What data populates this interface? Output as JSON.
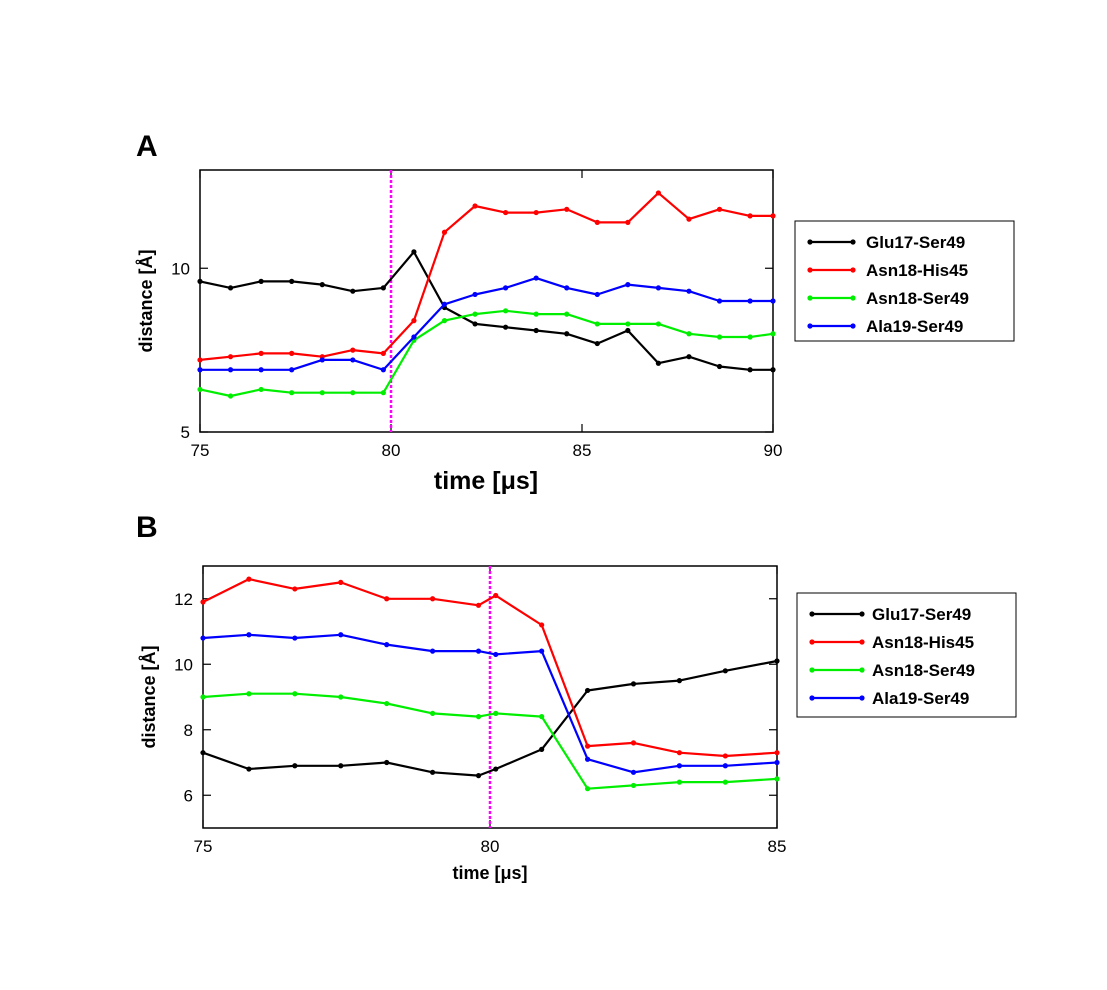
{
  "chart_data": [
    {
      "type": "line",
      "panel_label": "A",
      "xlabel": "time [μs]",
      "ylabel": "distance [Å]",
      "xlim": [
        75,
        90
      ],
      "ylim": [
        5,
        13
      ],
      "x_ticks": [
        75,
        80,
        85,
        90
      ],
      "y_ticks": [
        5,
        10
      ],
      "marker_line": {
        "x": 80,
        "color": "#ff00ff"
      },
      "legend_position": "right",
      "x": [
        75,
        75.8,
        76.6,
        77.4,
        78.2,
        79.0,
        79.8,
        80.6,
        81.4,
        82.2,
        83.0,
        83.8,
        84.6,
        85.4,
        86.2,
        87.0,
        87.8,
        88.6,
        89.4,
        90
      ],
      "series": [
        {
          "name": "Glu17-Ser49",
          "color": "#000000",
          "values": [
            9.6,
            9.4,
            9.6,
            9.6,
            9.5,
            9.3,
            9.4,
            10.5,
            8.8,
            8.3,
            8.2,
            8.1,
            8.0,
            7.7,
            8.1,
            7.1,
            7.3,
            7.0,
            6.9,
            6.9
          ]
        },
        {
          "name": "Asn18-His45",
          "color": "#ff0000",
          "values": [
            7.2,
            7.3,
            7.4,
            7.4,
            7.3,
            7.5,
            7.4,
            8.4,
            11.1,
            11.9,
            11.7,
            11.7,
            11.8,
            11.4,
            11.4,
            12.3,
            11.5,
            11.8,
            11.6,
            11.6
          ]
        },
        {
          "name": "Asn18-Ser49",
          "color": "#00ee00",
          "values": [
            6.3,
            6.1,
            6.3,
            6.2,
            6.2,
            6.2,
            6.2,
            7.8,
            8.4,
            8.6,
            8.7,
            8.6,
            8.6,
            8.3,
            8.3,
            8.3,
            8.0,
            7.9,
            7.9,
            8.0
          ]
        },
        {
          "name": "Ala19-Ser49",
          "color": "#0000ff",
          "values": [
            6.9,
            6.9,
            6.9,
            6.9,
            7.2,
            7.2,
            6.9,
            7.9,
            8.9,
            9.2,
            9.4,
            9.7,
            9.4,
            9.2,
            9.5,
            9.4,
            9.3,
            9.0,
            9.0,
            9.0
          ]
        }
      ]
    },
    {
      "type": "line",
      "panel_label": "B",
      "xlabel": "time [μs]",
      "ylabel": "distance [Å]",
      "xlim": [
        75,
        85
      ],
      "ylim": [
        5,
        13
      ],
      "x_ticks": [
        75,
        80,
        85
      ],
      "y_ticks": [
        6,
        8,
        10,
        12
      ],
      "marker_line": {
        "x": 80,
        "color": "#ff00ff"
      },
      "legend_position": "right",
      "x": [
        75,
        75.8,
        76.6,
        77.4,
        78.2,
        79.0,
        79.8,
        80.1,
        80.9,
        81.7,
        82.5,
        83.3,
        84.1,
        85
      ],
      "series": [
        {
          "name": "Glu17-Ser49",
          "color": "#000000",
          "values": [
            7.3,
            6.8,
            6.9,
            6.9,
            7.0,
            6.7,
            6.6,
            6.8,
            7.4,
            9.2,
            9.4,
            9.5,
            9.8,
            10.1
          ]
        },
        {
          "name": "Asn18-His45",
          "color": "#ff0000",
          "values": [
            11.9,
            12.6,
            12.3,
            12.5,
            12.0,
            12.0,
            11.8,
            12.1,
            11.2,
            7.5,
            7.6,
            7.3,
            7.2,
            7.3
          ]
        },
        {
          "name": "Asn18-Ser49",
          "color": "#00ee00",
          "values": [
            9.0,
            9.1,
            9.1,
            9.0,
            8.8,
            8.5,
            8.4,
            8.5,
            8.4,
            6.2,
            6.3,
            6.4,
            6.4,
            6.5
          ]
        },
        {
          "name": "Ala19-Ser49",
          "color": "#0000ff",
          "values": [
            10.8,
            10.9,
            10.8,
            10.9,
            10.6,
            10.4,
            10.4,
            10.3,
            10.4,
            7.1,
            6.7,
            6.9,
            6.9,
            7.0
          ]
        }
      ]
    }
  ]
}
